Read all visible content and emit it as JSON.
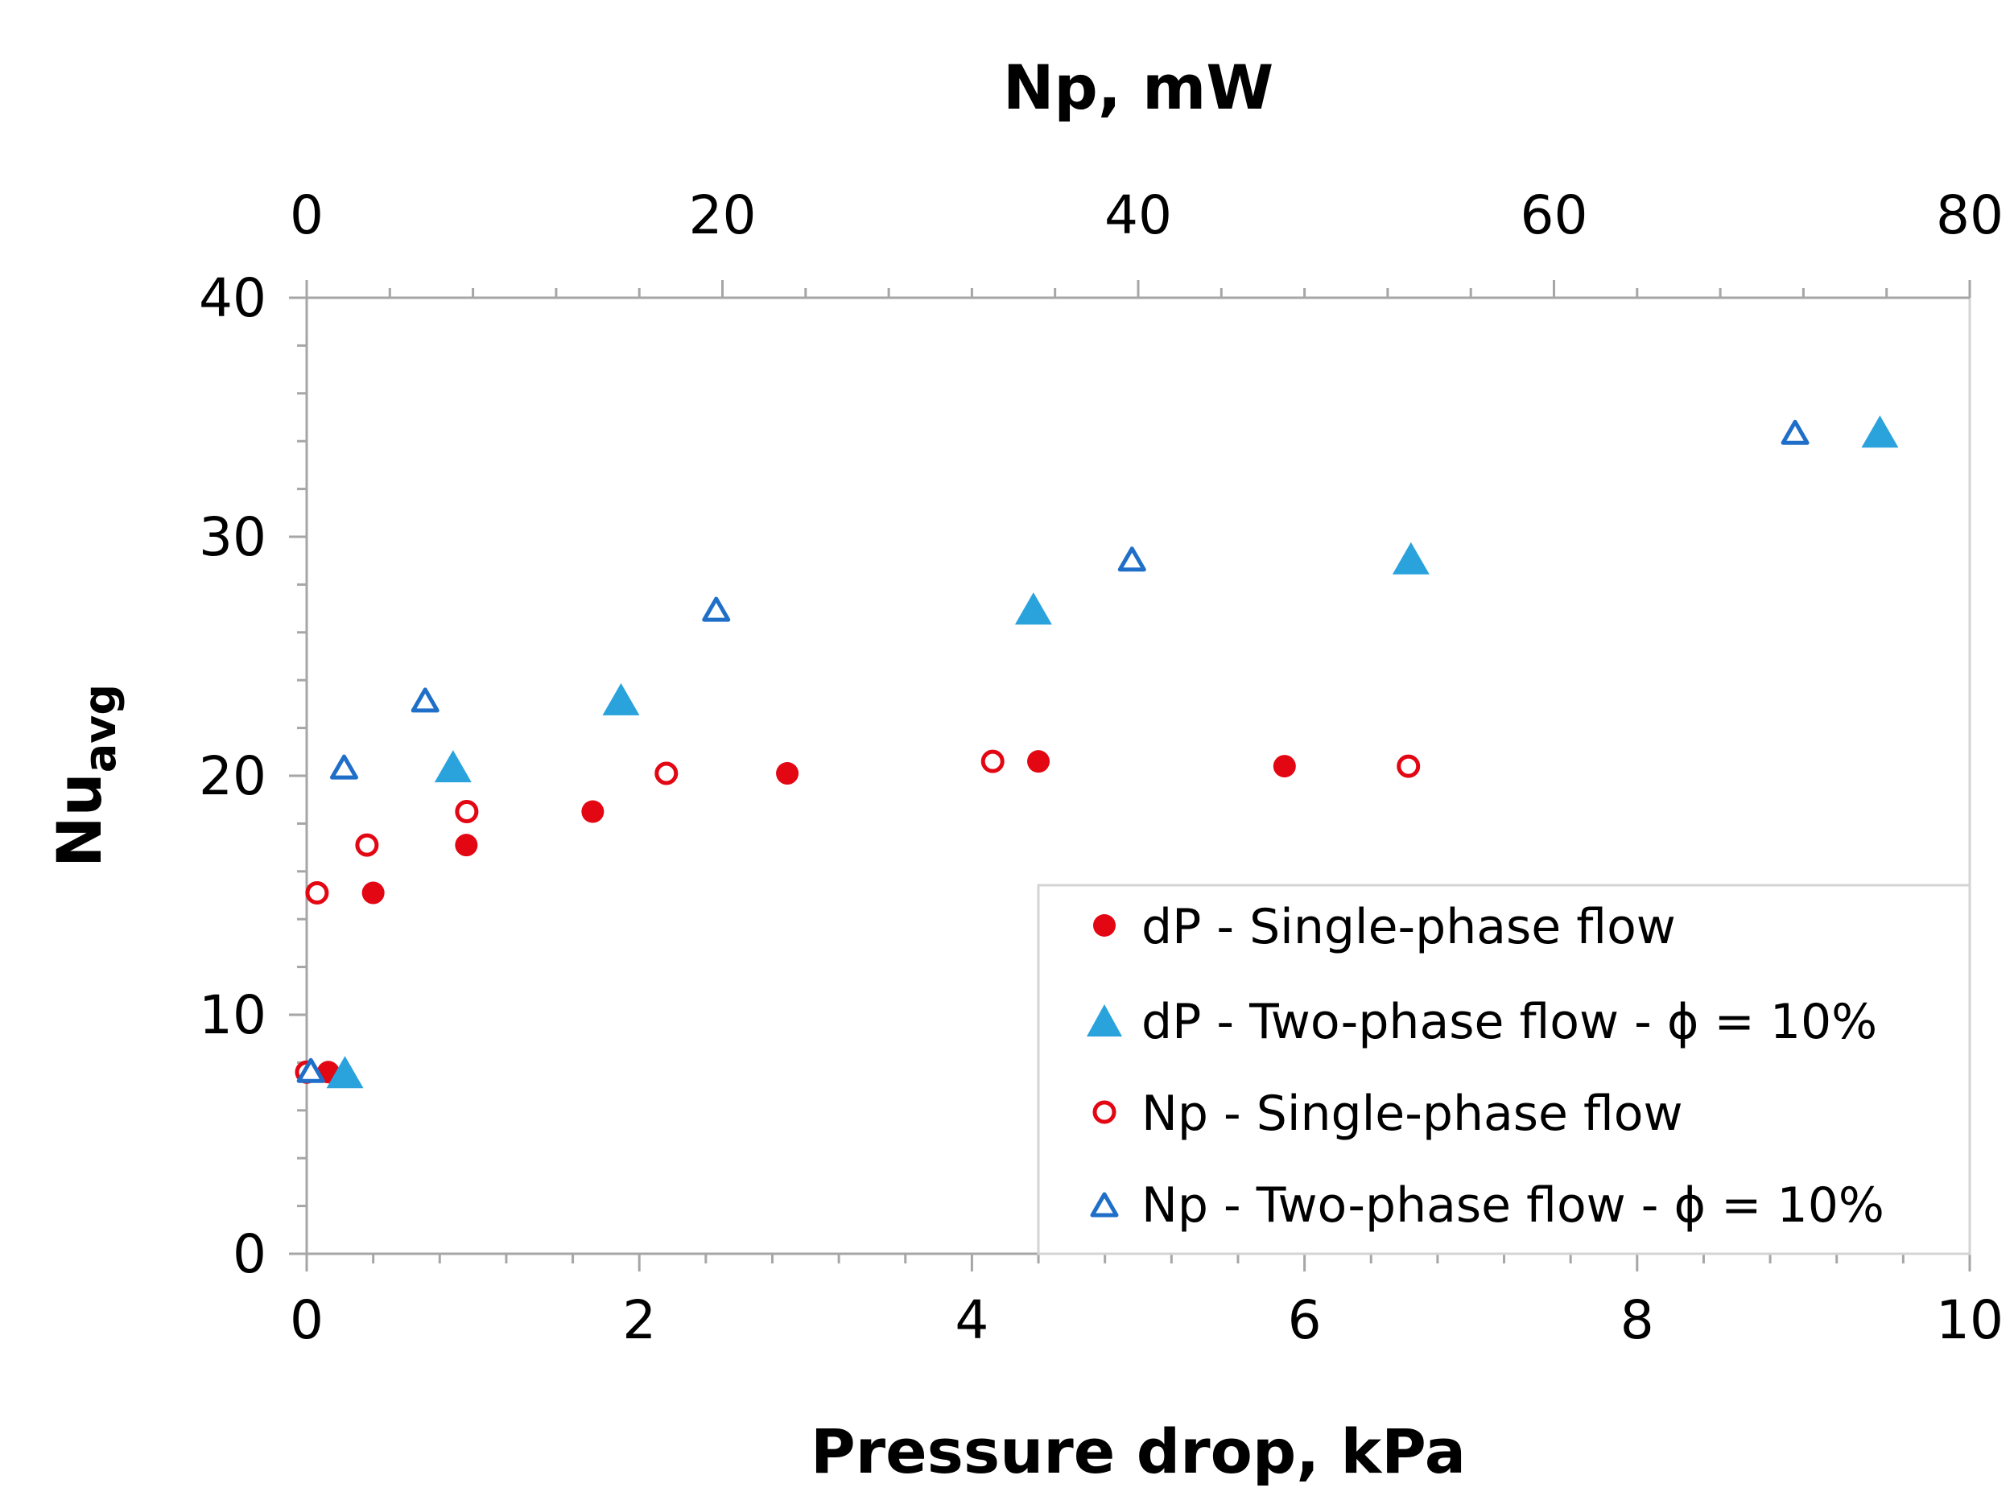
{
  "chart_data": {
    "type": "scatter",
    "title": "",
    "xlabel": "Pressure drop, kPa",
    "x2label": "Np, mW",
    "ylabel_main": "Nu",
    "ylabel_sub": "avg",
    "xlim": [
      0,
      10
    ],
    "x2lim": [
      0,
      80
    ],
    "ylim": [
      0,
      40
    ],
    "x_ticks": [
      "0",
      "2",
      "4",
      "6",
      "8",
      "10"
    ],
    "x2_ticks": [
      "0",
      "20",
      "40",
      "60",
      "80"
    ],
    "y_ticks": [
      "0",
      "10",
      "20",
      "30",
      "40"
    ],
    "legend_position": "bottom-right",
    "colors": {
      "red": "#e30613",
      "cyan": "#2aa3dd",
      "blue": "#1f6fc9"
    },
    "series": [
      {
        "name": "dP - Single-phase flow",
        "axis": "bottom",
        "marker": "circle-filled",
        "color": "#e30613",
        "points": [
          [
            0.13,
            7.6
          ],
          [
            0.4,
            15.1
          ],
          [
            0.96,
            17.1
          ],
          [
            1.72,
            18.5
          ],
          [
            2.89,
            20.1
          ],
          [
            4.4,
            20.6
          ],
          [
            5.88,
            20.4
          ]
        ]
      },
      {
        "name": "dP - Two-phase flow - ϕ = 10%",
        "axis": "bottom",
        "marker": "triangle-filled",
        "color": "#2aa3dd",
        "points": [
          [
            0.23,
            7.5
          ],
          [
            0.88,
            20.3
          ],
          [
            1.89,
            23.1
          ],
          [
            4.37,
            26.9
          ],
          [
            6.64,
            29.0
          ],
          [
            9.46,
            34.3
          ]
        ]
      },
      {
        "name": "Np - Single-phase flow",
        "axis": "top",
        "marker": "circle-open",
        "color": "#e30613",
        "points": [
          [
            0.0,
            7.6
          ],
          [
            0.5,
            15.1
          ],
          [
            2.9,
            17.1
          ],
          [
            7.7,
            18.5
          ],
          [
            17.3,
            20.1
          ],
          [
            33.0,
            20.6
          ],
          [
            53.0,
            20.4
          ]
        ]
      },
      {
        "name": "Np - Two-phase flow - ϕ = 10%",
        "axis": "top",
        "marker": "triangle-open",
        "color": "#1f6fc9",
        "points": [
          [
            0.2,
            7.6
          ],
          [
            1.8,
            20.3
          ],
          [
            5.7,
            23.1
          ],
          [
            19.7,
            26.9
          ],
          [
            39.7,
            29.0
          ],
          [
            71.6,
            34.3
          ]
        ]
      }
    ]
  }
}
